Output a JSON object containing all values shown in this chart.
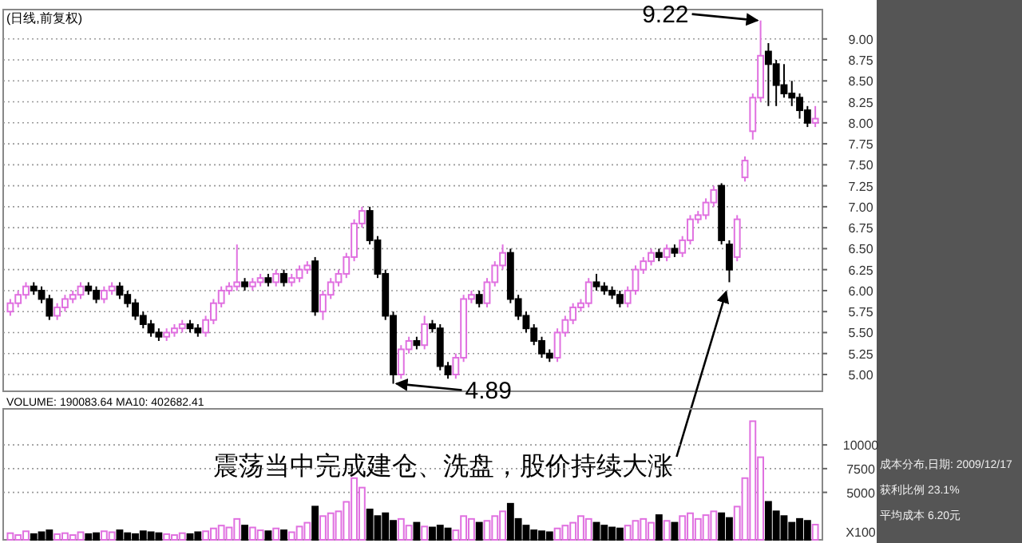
{
  "chart_data": [
    {
      "type": "candlestick",
      "title": "(日线,前复权)",
      "categories": [
        null,
        null,
        null,
        null,
        null,
        null,
        null,
        null,
        null,
        null,
        null,
        null,
        null,
        null,
        null,
        null,
        null,
        null,
        null,
        null,
        null,
        null,
        null,
        null,
        null,
        null,
        null,
        null,
        null,
        null,
        null,
        null,
        null,
        null,
        null,
        null,
        null,
        null,
        null,
        null,
        null,
        null,
        null,
        null,
        null,
        null,
        null,
        null,
        null,
        null,
        null,
        null,
        null,
        null,
        null,
        null,
        null,
        null,
        null,
        null,
        null,
        null,
        null,
        null,
        null,
        null,
        null,
        null,
        null,
        null,
        null,
        null,
        null,
        null,
        null,
        null,
        null,
        null,
        null,
        null,
        null,
        null,
        null,
        null,
        null,
        null,
        null,
        null,
        null,
        null,
        null,
        null,
        null,
        null,
        null,
        null,
        null,
        null,
        null,
        null,
        null,
        null,
        null,
        null
      ],
      "ohlc": [
        [
          5.75,
          5.9,
          5.7,
          5.85
        ],
        [
          5.85,
          6.0,
          5.8,
          5.95
        ],
        [
          5.95,
          6.1,
          5.9,
          6.05
        ],
        [
          6.05,
          6.1,
          5.95,
          6.0
        ],
        [
          6.0,
          6.05,
          5.85,
          5.9
        ],
        [
          5.9,
          5.95,
          5.65,
          5.7
        ],
        [
          5.7,
          5.85,
          5.65,
          5.8
        ],
        [
          5.8,
          5.95,
          5.75,
          5.9
        ],
        [
          5.9,
          6.0,
          5.85,
          5.95
        ],
        [
          5.95,
          6.1,
          5.9,
          6.05
        ],
        [
          6.05,
          6.1,
          5.95,
          6.0
        ],
        [
          6.0,
          6.05,
          5.85,
          5.9
        ],
        [
          5.9,
          6.05,
          5.85,
          6.0
        ],
        [
          6.0,
          6.1,
          5.95,
          6.05
        ],
        [
          6.05,
          6.1,
          5.9,
          5.95
        ],
        [
          5.95,
          6.0,
          5.8,
          5.85
        ],
        [
          5.85,
          5.9,
          5.65,
          5.7
        ],
        [
          5.7,
          5.75,
          5.55,
          5.6
        ],
        [
          5.6,
          5.65,
          5.45,
          5.5
        ],
        [
          5.5,
          5.55,
          5.4,
          5.45
        ],
        [
          5.45,
          5.55,
          5.4,
          5.5
        ],
        [
          5.5,
          5.6,
          5.45,
          5.55
        ],
        [
          5.55,
          5.65,
          5.5,
          5.6
        ],
        [
          5.6,
          5.65,
          5.5,
          5.55
        ],
        [
          5.55,
          5.6,
          5.45,
          5.5
        ],
        [
          5.5,
          5.7,
          5.45,
          5.65
        ],
        [
          5.65,
          5.9,
          5.6,
          5.85
        ],
        [
          5.85,
          6.05,
          5.8,
          6.0
        ],
        [
          6.0,
          6.1,
          5.95,
          6.05
        ],
        [
          6.05,
          6.55,
          6.0,
          6.1
        ],
        [
          6.1,
          6.15,
          6.0,
          6.05
        ],
        [
          6.05,
          6.15,
          6.0,
          6.1
        ],
        [
          6.1,
          6.2,
          6.05,
          6.15
        ],
        [
          6.15,
          6.2,
          6.05,
          6.1
        ],
        [
          6.1,
          6.25,
          6.05,
          6.2
        ],
        [
          6.2,
          6.25,
          6.05,
          6.1
        ],
        [
          6.1,
          6.2,
          6.05,
          6.15
        ],
        [
          6.15,
          6.3,
          6.1,
          6.25
        ],
        [
          6.25,
          6.35,
          6.2,
          6.3
        ],
        [
          6.35,
          6.4,
          5.7,
          5.75
        ],
        [
          5.75,
          6.0,
          5.65,
          5.95
        ],
        [
          5.95,
          6.15,
          5.9,
          6.1
        ],
        [
          6.1,
          6.25,
          6.05,
          6.2
        ],
        [
          6.2,
          6.45,
          6.15,
          6.4
        ],
        [
          6.4,
          6.85,
          6.35,
          6.8
        ],
        [
          6.8,
          7.0,
          6.75,
          6.95
        ],
        [
          6.95,
          7.0,
          6.55,
          6.6
        ],
        [
          6.6,
          6.65,
          6.15,
          6.2
        ],
        [
          6.2,
          6.25,
          5.65,
          5.7
        ],
        [
          5.7,
          5.75,
          4.89,
          5.0
        ],
        [
          5.0,
          5.35,
          4.95,
          5.3
        ],
        [
          5.3,
          5.45,
          5.25,
          5.4
        ],
        [
          5.4,
          5.45,
          5.3,
          5.35
        ],
        [
          5.35,
          5.7,
          5.3,
          5.6
        ],
        [
          5.6,
          5.65,
          5.5,
          5.55
        ],
        [
          5.55,
          5.6,
          5.05,
          5.1
        ],
        [
          5.1,
          5.15,
          4.95,
          5.0
        ],
        [
          5.0,
          5.25,
          4.95,
          5.2
        ],
        [
          5.2,
          5.95,
          5.15,
          5.9
        ],
        [
          5.9,
          6.0,
          5.85,
          5.95
        ],
        [
          5.95,
          6.0,
          5.8,
          5.85
        ],
        [
          5.85,
          6.15,
          5.8,
          6.1
        ],
        [
          6.1,
          6.35,
          6.05,
          6.3
        ],
        [
          6.3,
          6.55,
          6.25,
          6.45
        ],
        [
          6.45,
          6.5,
          5.85,
          5.9
        ],
        [
          5.9,
          5.95,
          5.65,
          5.7
        ],
        [
          5.7,
          5.75,
          5.5,
          5.55
        ],
        [
          5.55,
          5.6,
          5.35,
          5.4
        ],
        [
          5.4,
          5.45,
          5.2,
          5.25
        ],
        [
          5.25,
          5.3,
          5.15,
          5.2
        ],
        [
          5.2,
          5.55,
          5.15,
          5.5
        ],
        [
          5.5,
          5.7,
          5.45,
          5.65
        ],
        [
          5.65,
          5.85,
          5.6,
          5.8
        ],
        [
          5.8,
          5.9,
          5.75,
          5.85
        ],
        [
          5.85,
          6.15,
          5.8,
          6.1
        ],
        [
          6.1,
          6.2,
          6.0,
          6.05
        ],
        [
          6.05,
          6.1,
          5.95,
          6.0
        ],
        [
          6.0,
          6.05,
          5.9,
          5.95
        ],
        [
          5.95,
          6.0,
          5.8,
          5.85
        ],
        [
          5.85,
          6.05,
          5.8,
          6.0
        ],
        [
          6.0,
          6.3,
          5.95,
          6.25
        ],
        [
          6.25,
          6.4,
          6.2,
          6.35
        ],
        [
          6.35,
          6.5,
          6.3,
          6.45
        ],
        [
          6.45,
          6.5,
          6.35,
          6.4
        ],
        [
          6.4,
          6.55,
          6.35,
          6.5
        ],
        [
          6.5,
          6.55,
          6.4,
          6.45
        ],
        [
          6.45,
          6.65,
          6.4,
          6.6
        ],
        [
          6.6,
          6.9,
          6.55,
          6.85
        ],
        [
          6.85,
          6.95,
          6.8,
          6.9
        ],
        [
          6.9,
          7.1,
          6.85,
          7.05
        ],
        [
          7.05,
          7.25,
          7.0,
          7.2
        ],
        [
          7.25,
          7.28,
          6.55,
          6.6
        ],
        [
          6.55,
          6.6,
          6.1,
          6.25
        ],
        [
          6.4,
          6.9,
          6.35,
          6.85
        ],
        [
          7.35,
          7.6,
          7.3,
          7.55
        ],
        [
          7.9,
          8.35,
          7.8,
          8.3
        ],
        [
          8.3,
          9.22,
          8.25,
          8.8
        ],
        [
          8.85,
          8.95,
          8.2,
          8.7
        ],
        [
          8.7,
          8.75,
          8.2,
          8.45
        ],
        [
          8.45,
          8.7,
          8.3,
          8.35
        ],
        [
          8.35,
          8.5,
          8.2,
          8.3
        ],
        [
          8.3,
          8.35,
          8.05,
          8.15
        ],
        [
          8.15,
          8.2,
          7.95,
          8.0
        ],
        [
          8.0,
          8.2,
          7.95,
          8.05
        ]
      ],
      "ylim": [
        4.8,
        9.35
      ],
      "yticks": [
        {
          "value": 5,
          "label": "5.00"
        },
        {
          "value": 5.25,
          "label": "5.25"
        },
        {
          "value": 5.5,
          "label": "5.50"
        },
        {
          "value": 5.75,
          "label": "5.75"
        },
        {
          "value": 6,
          "label": "6.00"
        },
        {
          "value": 6.25,
          "label": "6.25"
        },
        {
          "value": 6.5,
          "label": "6.50"
        },
        {
          "value": 6.75,
          "label": "6.75"
        },
        {
          "value": 7,
          "label": "7.00"
        },
        {
          "value": 7.25,
          "label": "7.25"
        },
        {
          "value": 7.5,
          "label": "7.50"
        },
        {
          "value": 7.75,
          "label": "7.75"
        },
        {
          "value": 8,
          "label": "8.00"
        },
        {
          "value": 8.25,
          "label": "8.25"
        },
        {
          "value": 8.5,
          "label": "8.50"
        },
        {
          "value": 8.75,
          "label": "8.75"
        },
        {
          "value": 9,
          "label": "9.00"
        }
      ],
      "grid": "y",
      "annotations": [
        "9.22",
        "4.89",
        "震荡当中完成建仓、洗盘，股价持续大涨"
      ]
    },
    {
      "type": "bar",
      "title": "VOLUME: 190083.64  MA10: 402682.41",
      "categories": [
        null,
        null,
        null,
        null,
        null,
        null,
        null,
        null,
        null,
        null,
        null,
        null,
        null,
        null,
        null,
        null,
        null,
        null,
        null,
        null,
        null,
        null,
        null,
        null,
        null,
        null,
        null,
        null,
        null,
        null,
        null,
        null,
        null,
        null,
        null,
        null,
        null,
        null,
        null,
        null,
        null,
        null,
        null,
        null,
        null,
        null,
        null,
        null,
        null,
        null,
        null,
        null,
        null,
        null,
        null,
        null,
        null,
        null,
        null,
        null,
        null,
        null,
        null,
        null,
        null,
        null,
        null,
        null,
        null,
        null,
        null,
        null,
        null,
        null,
        null,
        null,
        null,
        null,
        null,
        null,
        null,
        null,
        null,
        null,
        null,
        null,
        null,
        null,
        null,
        null,
        null,
        null,
        null,
        null,
        null,
        null,
        null,
        null,
        null,
        null,
        null,
        null,
        null,
        null
      ],
      "values": [
        700,
        500,
        900,
        600,
        800,
        1000,
        600,
        700,
        500,
        800,
        600,
        700,
        900,
        800,
        1000,
        700,
        600,
        900,
        800,
        700,
        600,
        500,
        700,
        600,
        800,
        900,
        1200,
        1500,
        1300,
        2200,
        1500,
        1300,
        1000,
        900,
        1200,
        1000,
        800,
        1400,
        1800,
        3500,
        2500,
        2800,
        3000,
        4000,
        6500,
        5500,
        3200,
        2500,
        2800,
        2000,
        2200,
        1500,
        1800,
        1400,
        1300,
        1500,
        1200,
        1000,
        2500,
        2200,
        1800,
        2000,
        2500,
        3000,
        3800,
        2200,
        1500,
        1000,
        900,
        800,
        1200,
        1500,
        1800,
        2500,
        2200,
        1800,
        1500,
        1300,
        1200,
        1500,
        2000,
        2200,
        1800,
        2600,
        2000,
        1800,
        2500,
        2800,
        2200,
        2600,
        3000,
        2800,
        2300,
        3500,
        6500,
        12500,
        8700,
        4000,
        3000,
        2500,
        1800,
        2200,
        2000,
        1600
      ],
      "ylim": [
        0,
        13800
      ],
      "yticks": [
        5000,
        7500,
        10000
      ],
      "grid": "y",
      "annotations": [
        "X100"
      ]
    },
    {
      "type": "other",
      "annotations": [
        "成本分布,日期: 2009/12/17",
        "获利比例 23.1%",
        "平均成本 6.20元"
      ]
    }
  ]
}
